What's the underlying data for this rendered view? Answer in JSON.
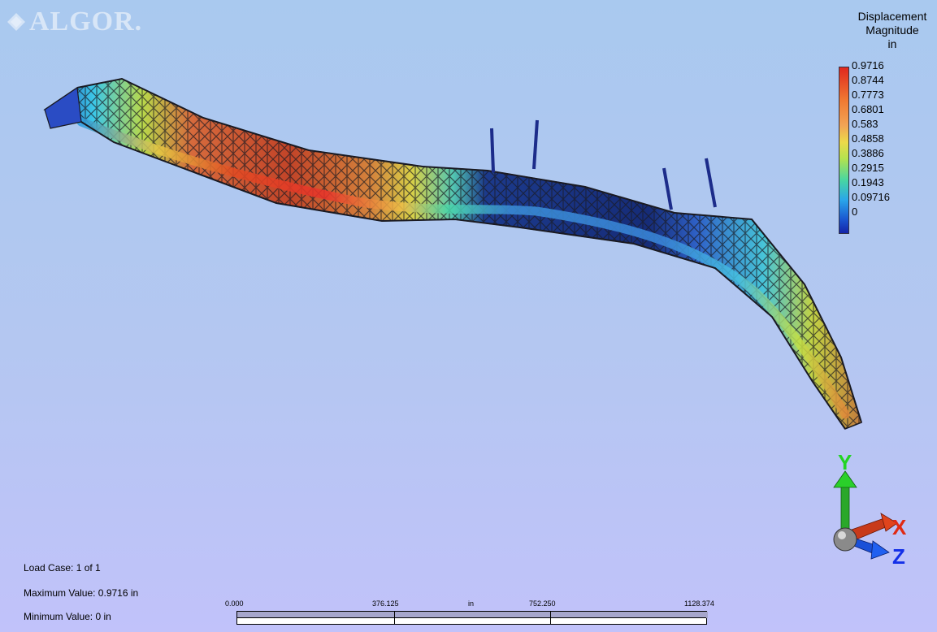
{
  "app": {
    "logo_text": "ALGOR."
  },
  "legend": {
    "title_lines": [
      "Displacement",
      "Magnitude",
      "in"
    ],
    "values": [
      "0.9716",
      "0.8744",
      "0.7773",
      "0.6801",
      "0.583",
      "0.4858",
      "0.3886",
      "0.2915",
      "0.1943",
      "0.09716",
      "0"
    ],
    "colors": {
      "max": "#e0281e",
      "mid": "#ecd94a",
      "min": "#1424a8"
    }
  },
  "info": {
    "load_case": "Load Case:  1 of 1",
    "max_value": "Maximum Value: 0.9716 in",
    "min_value": "Minimum Value: 0 in"
  },
  "scale": {
    "labels": [
      "0.000",
      "376.125",
      "in",
      "752.250",
      "1128.374"
    ]
  },
  "triad": {
    "y": "Y",
    "x": "X",
    "z": "Z"
  }
}
